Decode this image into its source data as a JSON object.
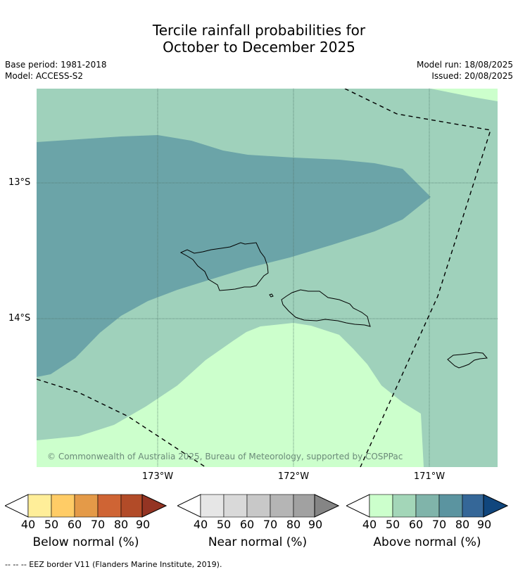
{
  "title": {
    "line1": "Tercile rainfall probabilities for",
    "line2": "October to December 2025"
  },
  "meta": {
    "base_period": "Base period: 1981-2018",
    "model": "Model: ACCESS-S2",
    "model_run": "Model run: 18/08/2025",
    "issued": "Issued: 20/08/2025"
  },
  "map": {
    "copyright": "© Commonwealth of Australia 2025, Bureau of Meteorology, supported by COSPPac",
    "lat_labels": [
      "13°S",
      "14°S"
    ],
    "lon_labels": [
      "173°W",
      "172°W",
      "171°W"
    ],
    "region_colors": {
      "above_50": "#9fd1bb",
      "above_40": "#ccffcc",
      "above_70": "#6ba4a8"
    }
  },
  "colorbars": [
    {
      "label": "Below normal (%)",
      "ticks": [
        "40",
        "50",
        "60",
        "70",
        "80",
        "90"
      ],
      "colors": [
        "#ffee99",
        "#ffcc66",
        "#e49a48",
        "#cf6434",
        "#b24b28",
        "#943423"
      ]
    },
    {
      "label": "Near normal (%)",
      "ticks": [
        "40",
        "50",
        "60",
        "70",
        "80",
        "90"
      ],
      "colors": [
        "#e6e6e6",
        "#d9d9d9",
        "#c8c8c8",
        "#b5b5b5",
        "#a1a1a1",
        "#858585"
      ]
    },
    {
      "label": "Above normal (%)",
      "ticks": [
        "40",
        "50",
        "60",
        "70",
        "80",
        "90"
      ],
      "colors": [
        "#ccffcc",
        "#a3d6b8",
        "#80b4aa",
        "#5b94a0",
        "#356798",
        "#10467d"
      ]
    }
  ],
  "footnote": "--  --  -- EEZ border V11 (Flanders Marine Institute, 2019)."
}
